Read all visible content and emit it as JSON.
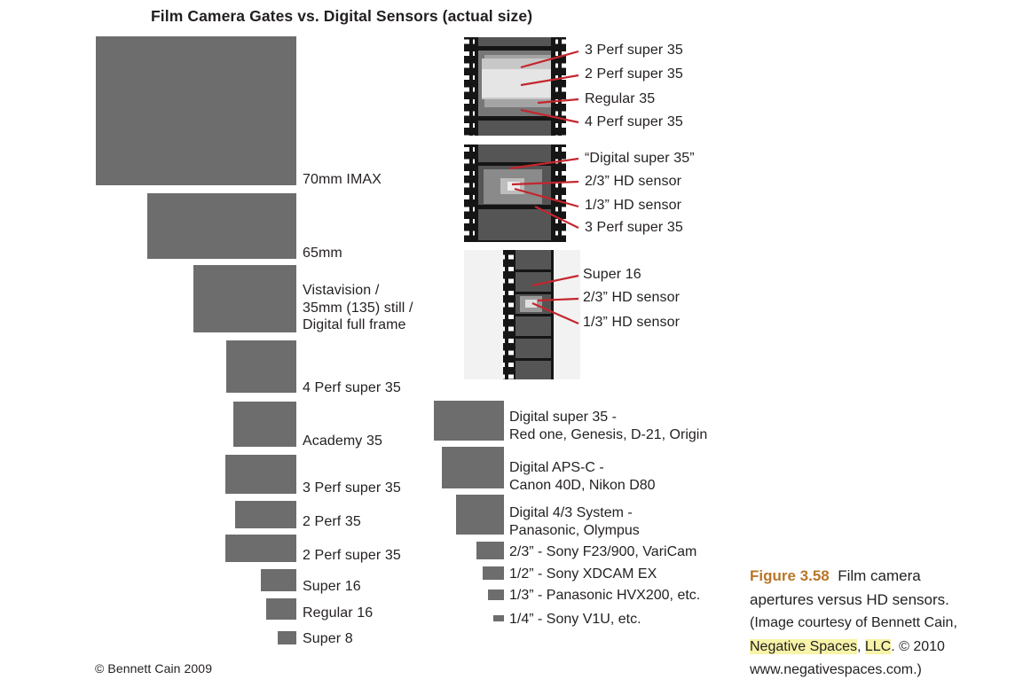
{
  "title": "Film Camera Gates vs. Digital Sensors (actual size)",
  "film_gates": [
    {
      "label": "70mm IMAX"
    },
    {
      "label": "65mm"
    },
    {
      "label": "Vistavision /\n35mm (135) still /\nDigital full frame"
    },
    {
      "label": "4 Perf super 35"
    },
    {
      "label": "Academy 35"
    },
    {
      "label": "3 Perf super 35"
    },
    {
      "label": "2 Perf 35"
    },
    {
      "label": "2 Perf super 35"
    },
    {
      "label": "Super 16"
    },
    {
      "label": "Regular 16"
    },
    {
      "label": "Super 8"
    }
  ],
  "strip1_labels": [
    "3 Perf super 35",
    "2 Perf super 35",
    "Regular 35",
    "4 Perf super 35"
  ],
  "strip2_labels": [
    "“Digital super 35”",
    "2/3” HD sensor",
    "1/3” HD sensor",
    "3 Perf super 35"
  ],
  "strip3_labels": [
    "Super 16",
    "2/3” HD sensor",
    "1/3” HD sensor"
  ],
  "digital_sensors": [
    {
      "label": "Digital super 35 -\nRed one, Genesis, D-21, Origin"
    },
    {
      "label": "Digital APS-C -\nCanon 40D, Nikon D80"
    },
    {
      "label": "Digital 4/3 System -\nPanasonic, Olympus"
    },
    {
      "label": "2/3” - Sony F23/900, VariCam"
    },
    {
      "label": "1/2” - Sony XDCAM EX"
    },
    {
      "label": "1/3” - Panasonic HVX200, etc."
    },
    {
      "label": "1/4” - Sony V1U, etc."
    }
  ],
  "copyright": "© Bennett Cain 2009",
  "caption": {
    "figure_number": "Figure 3.58",
    "line1": "Film camera",
    "line2": "apertures versus HD sensors.",
    "line3": "(Image courtesy of Bennett Cain,",
    "line4_a": "Negative Spaces",
    "line4_b": ", ",
    "line4_c": "LLC",
    "line4_d": ". © 2010",
    "line5": "www.negativespaces.com.)"
  },
  "colors": {
    "gate": "#6d6d6d",
    "leader": "#c4262e",
    "caption_accent": "#b8762a",
    "highlight": "#f7f3a8"
  }
}
